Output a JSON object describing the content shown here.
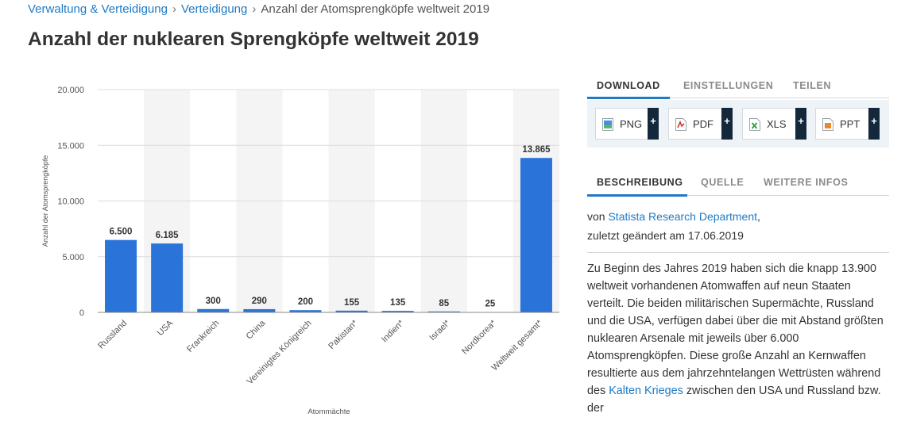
{
  "breadcrumb": {
    "item1": "Verwaltung & Verteidigung",
    "item2": "Verteidigung",
    "current": "Anzahl der Atomsprengköpfe weltweit 2019",
    "separator": "›"
  },
  "page_title": "Anzahl der nuklearen Sprengköpfe weltweit 2019",
  "colors": {
    "bar": "#2a73d9",
    "accent": "#1f7ac4",
    "grid": "#dcdcdc",
    "column_shade": "#f4f4f4"
  },
  "chart_data": {
    "type": "bar",
    "categories": [
      "Russland",
      "USA",
      "Frankreich",
      "China",
      "Vereinigtes Königreich",
      "Pakistan*",
      "Indien*",
      "Israel*",
      "Nordkorea*",
      "Weltweit gesamt*"
    ],
    "values": [
      6500,
      6185,
      300,
      290,
      200,
      155,
      135,
      85,
      25,
      13865
    ],
    "value_labels": [
      "6.500",
      "6.185",
      "300",
      "290",
      "200",
      "155",
      "135",
      "85",
      "25",
      "13.865"
    ],
    "xlabel": "Atommächte",
    "ylabel": "Anzahl der Atomsprengköpfe",
    "ylim": [
      0,
      20000
    ],
    "yticks": [
      0,
      5000,
      10000,
      15000,
      20000
    ],
    "ytick_labels": [
      "0",
      "5.000",
      "10.000",
      "15.000",
      "20.000"
    ],
    "grid": true
  },
  "download_tabs": [
    "DOWNLOAD",
    "EINSTELLUNGEN",
    "TEILEN"
  ],
  "download_buttons": [
    {
      "label": "PNG",
      "icon": "png-file-icon",
      "plus": "+"
    },
    {
      "label": "PDF",
      "icon": "pdf-file-icon",
      "plus": "+"
    },
    {
      "label": "XLS",
      "icon": "xls-file-icon",
      "plus": "+"
    },
    {
      "label": "PPT",
      "icon": "ppt-file-icon",
      "plus": "+"
    }
  ],
  "info_tabs": [
    "BESCHREIBUNG",
    "QUELLE",
    "WEITERE INFOS"
  ],
  "author": {
    "prefix": "von",
    "name": "Statista Research Department",
    "suffix": ",",
    "updated": "zuletzt geändert am 17.06.2019"
  },
  "description": {
    "text1": "Zu Beginn des Jahres 2019 haben sich die knapp 13.900 weltweit vorhandenen Atomwaffen auf neun Staaten verteilt. Die beiden militärischen Supermächte, Russland und die USA, verfügen dabei über die mit Abstand größten nuklearen Arsenale mit jeweils über 6.000 Atomsprengköpfen. Diese große Anzahl an Kernwaffen resultierte aus dem jahrzehntelangen Wettrüsten während des",
    "link": "Kalten Krieges",
    "text2": "zwischen den USA und Russland bzw. der"
  }
}
